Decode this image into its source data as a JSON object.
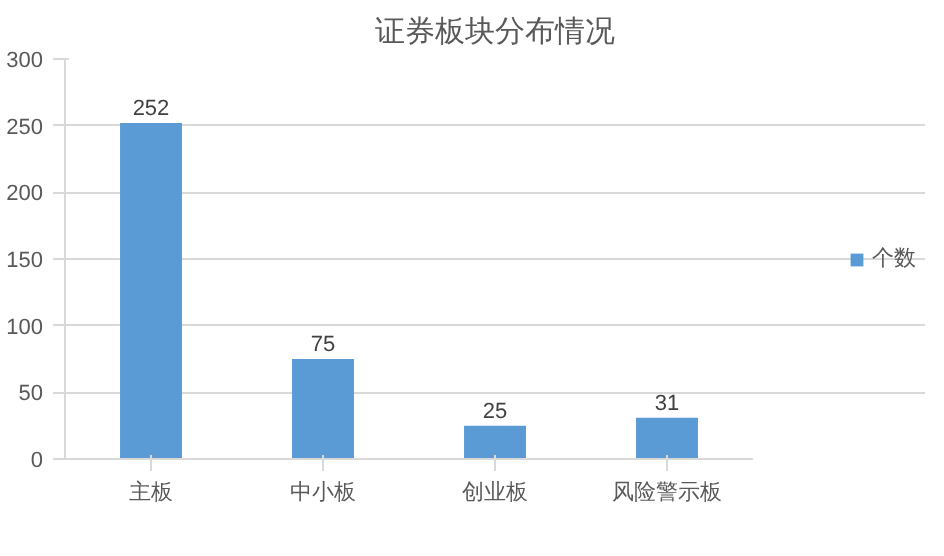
{
  "chart_data": {
    "type": "bar",
    "title": "证券板块分布情况",
    "categories": [
      "主板",
      "中小板",
      "创业板",
      "风险警示板"
    ],
    "series": [
      {
        "name": "个数",
        "color": "#5b9bd5",
        "values": [
          252,
          75,
          25,
          31
        ]
      }
    ],
    "ylim": [
      0,
      300
    ],
    "yticks": [
      0,
      50,
      100,
      150,
      200,
      250,
      300
    ],
    "grid": "y",
    "legend": "right",
    "data_labels": true
  }
}
